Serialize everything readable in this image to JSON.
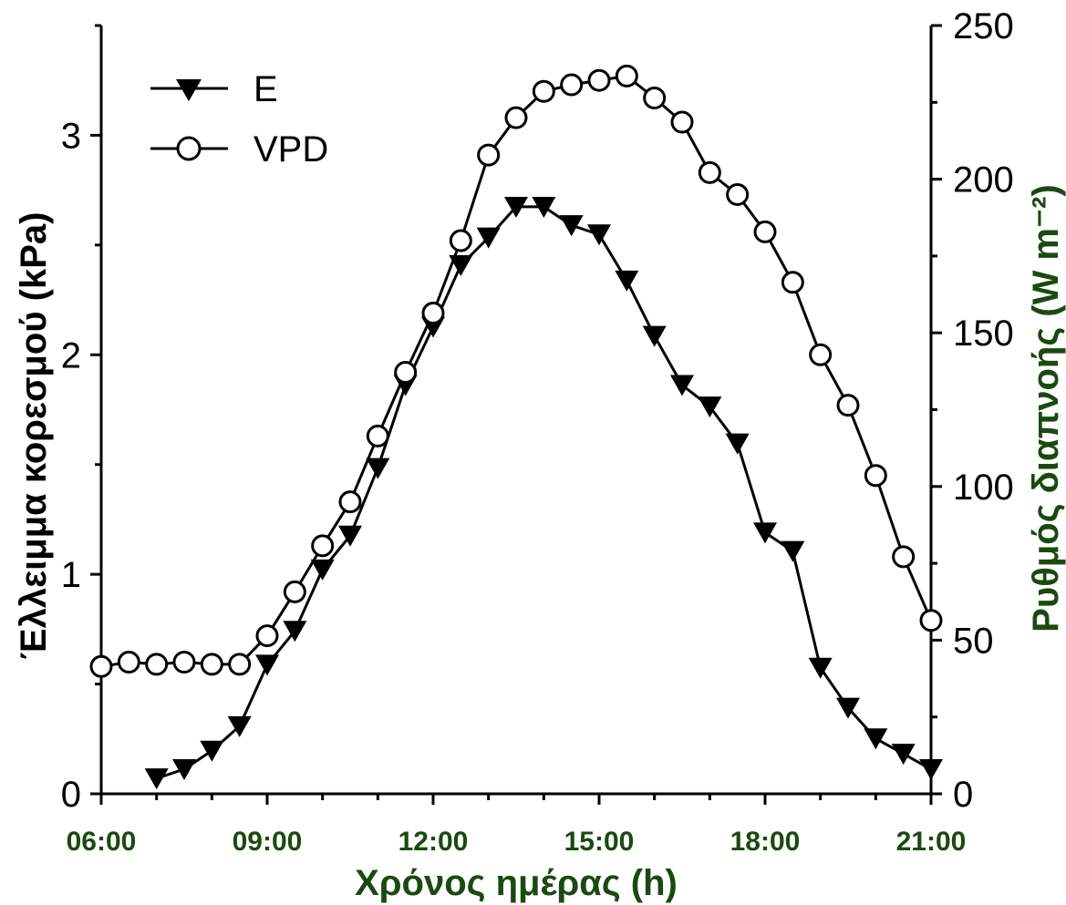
{
  "chart_data": {
    "type": "line",
    "xlabel": "Χρόνος ημέρας (h)",
    "ylabel_left": "Έλλειμμα κορεσμού (kPa)",
    "ylabel_right": "Ρυθμός διαπνοής (W m⁻²)",
    "x_ticks": [
      "06:00",
      "09:00",
      "12:00",
      "15:00",
      "18:00",
      "21:00"
    ],
    "xlim": [
      6,
      21
    ],
    "ylim_left": [
      0,
      3.5
    ],
    "ylim_right": [
      0,
      250
    ],
    "left_ticks": [
      "0",
      "1",
      "2",
      "3"
    ],
    "right_ticks": [
      "0",
      "50",
      "100",
      "150",
      "200",
      "250"
    ],
    "legend_position": "top-left",
    "grid": false,
    "series": [
      {
        "name": "E",
        "axis": "right",
        "marker": "filled-triangle-down",
        "x": [
          7.0,
          7.5,
          8.0,
          8.5,
          9.0,
          9.5,
          10.0,
          10.5,
          11.0,
          11.5,
          12.0,
          12.5,
          13.0,
          13.5,
          14.0,
          14.5,
          15.0,
          15.5,
          16.0,
          16.5,
          17.0,
          17.5,
          18.0,
          18.5,
          19.0,
          19.5,
          20.0,
          20.5,
          21.0
        ],
        "values": [
          5,
          8,
          14,
          22,
          42,
          53,
          73,
          84,
          106,
          133,
          152,
          172,
          181,
          191,
          191,
          185,
          182,
          167,
          149,
          133,
          126,
          114,
          85,
          79,
          41,
          28,
          18,
          13,
          8
        ]
      },
      {
        "name": "VPD",
        "axis": "left",
        "marker": "open-circle",
        "x": [
          6.0,
          6.5,
          7.0,
          7.5,
          8.0,
          8.5,
          9.0,
          9.5,
          10.0,
          10.5,
          11.0,
          11.5,
          12.0,
          12.5,
          13.0,
          13.5,
          14.0,
          14.5,
          15.0,
          15.5,
          16.0,
          16.5,
          17.0,
          17.5,
          18.0,
          18.5,
          19.0,
          19.5,
          20.0,
          20.5,
          21.0
        ],
        "values": [
          0.58,
          0.6,
          0.59,
          0.6,
          0.59,
          0.59,
          0.72,
          0.92,
          1.13,
          1.33,
          1.63,
          1.92,
          2.19,
          2.52,
          2.91,
          3.08,
          3.2,
          3.23,
          3.25,
          3.27,
          3.17,
          3.06,
          2.83,
          2.73,
          2.56,
          2.33,
          2.0,
          1.77,
          1.45,
          1.08,
          0.79
        ]
      }
    ]
  },
  "colors": {
    "axis_label_green": "#1a4a10",
    "line": "#000000"
  }
}
